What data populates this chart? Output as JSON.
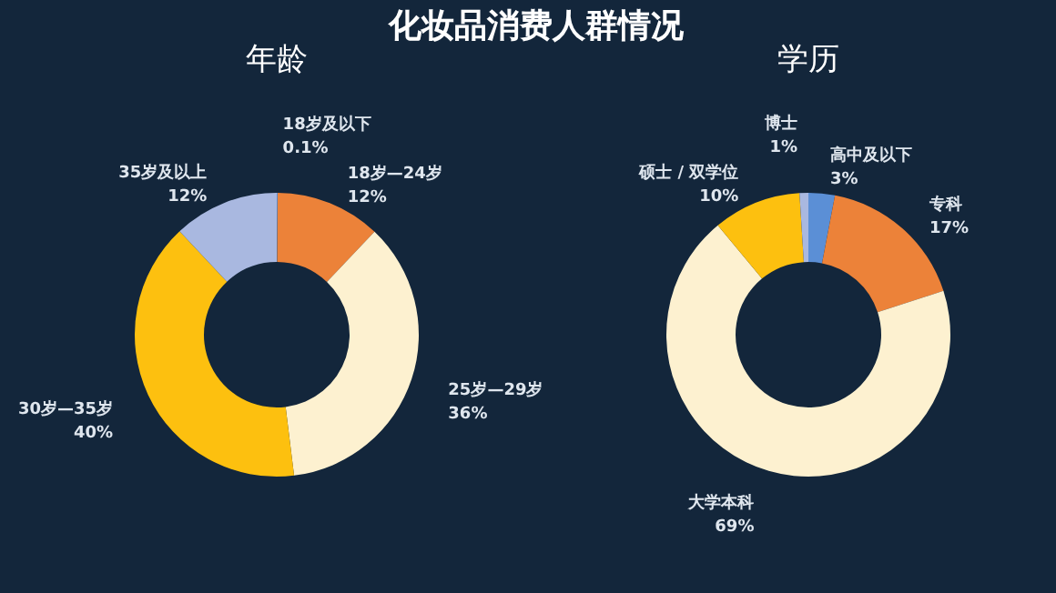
{
  "chart_data": [
    {
      "type": "donut",
      "title": "年龄",
      "annotations": [
        "化妆品消费人群情况"
      ],
      "categories": [
        "18岁及以下",
        "18岁—24岁",
        "25岁—29岁",
        "30岁—35岁",
        "35岁及以上"
      ],
      "values": [
        0.1,
        12,
        36,
        40,
        12
      ],
      "value_labels": [
        "0.1%",
        "12%",
        "36%",
        "40%",
        "12%"
      ],
      "colors": [
        "#5b8fd6",
        "#ec8239",
        "#fdf1d0",
        "#fdc00f",
        "#a9b8e0"
      ]
    },
    {
      "type": "donut",
      "title": "学历",
      "categories": [
        "高中及以下",
        "专科",
        "大学本科",
        "硕士 / 双学位",
        "博士"
      ],
      "values": [
        3,
        17,
        69,
        10,
        1
      ],
      "value_labels": [
        "3%",
        "17%",
        "69%",
        "10%",
        "1%"
      ],
      "colors": [
        "#5b8fd6",
        "#ec8239",
        "#fdf1d0",
        "#fdc00f",
        "#a9b8e0"
      ]
    }
  ]
}
